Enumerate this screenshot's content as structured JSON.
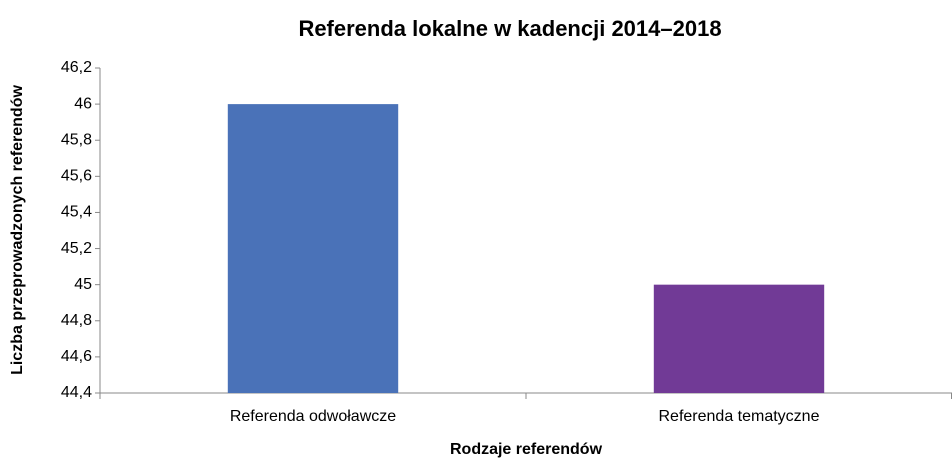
{
  "chart_data": {
    "type": "bar",
    "title": "Referenda lokalne w kadencji 2014–2018",
    "x_label": "Rodzaje referendów",
    "y_label": "Liczba przeprowadzonych referendów",
    "categories": [
      "Referenda odwoławcze",
      "Referenda tematyczne"
    ],
    "values": [
      46,
      45
    ],
    "colors": [
      "#4a72b8",
      "#713a96"
    ],
    "ylim": [
      44.4,
      46.2
    ],
    "yticks": [
      {
        "value": 44.4,
        "label": "44,4"
      },
      {
        "value": 44.6,
        "label": "44,6"
      },
      {
        "value": 44.8,
        "label": "44,8"
      },
      45,
      {
        "value": 45.2,
        "label": "45,2"
      },
      {
        "value": 45.4,
        "label": "45,4"
      },
      {
        "value": 45.6,
        "label": "45,6"
      },
      {
        "value": 45.8,
        "label": "45,8"
      },
      46,
      {
        "value": 46.2,
        "label": "46,2"
      }
    ],
    "grid": false
  }
}
